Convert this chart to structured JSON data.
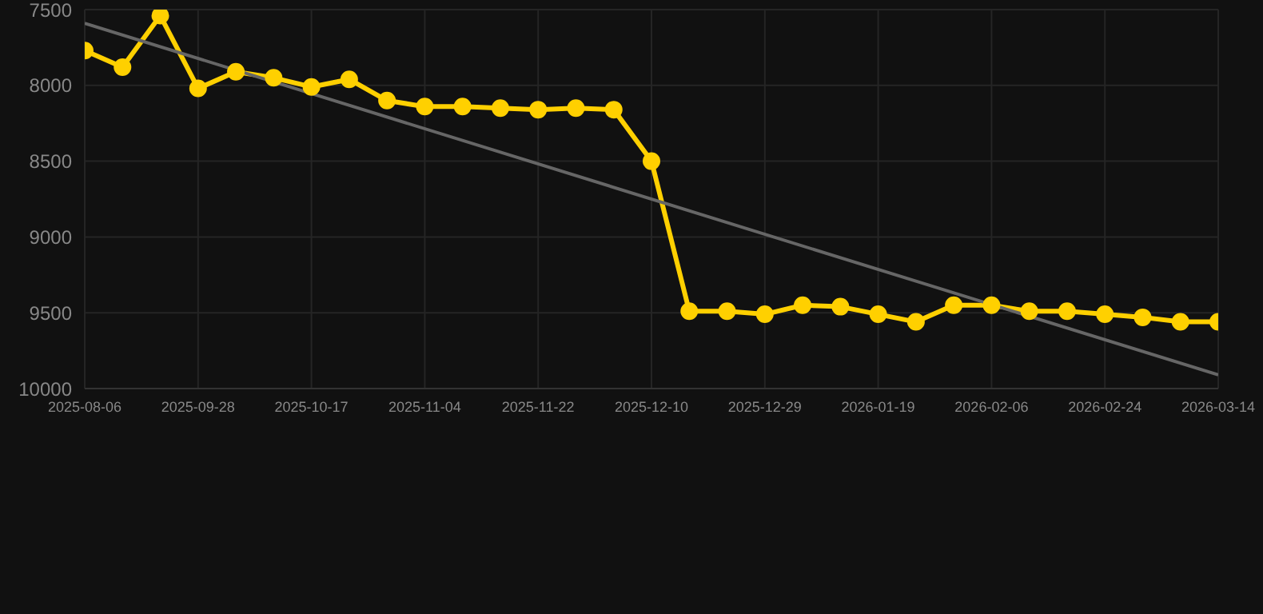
{
  "chart_data": {
    "type": "line",
    "categories": [
      "2025-08-06",
      null,
      null,
      "2025-09-28",
      null,
      null,
      "2025-10-17",
      null,
      null,
      "2025-11-04",
      null,
      null,
      "2025-11-22",
      null,
      null,
      "2025-12-10",
      null,
      null,
      "2025-12-29",
      null,
      null,
      "2026-01-19",
      null,
      null,
      "2026-02-06",
      null,
      null,
      "2026-02-24",
      null,
      null,
      "2026-03-14"
    ],
    "series": [
      {
        "color": "#ffd000",
        "marker": "circle",
        "values": [
          7770,
          7880,
          7540,
          8020,
          7910,
          7950,
          8010,
          7960,
          8100,
          8140,
          8140,
          8150,
          8160,
          8150,
          8160,
          8500,
          9490,
          9490,
          9510,
          9450,
          9460,
          9510,
          9560,
          9450,
          9450,
          9490,
          9490,
          9510,
          9530,
          9560,
          9560
        ]
      },
      {
        "type": "line",
        "color": "#666666",
        "marker": "none",
        "values": [
          7590,
          null,
          null,
          null,
          null,
          null,
          null,
          null,
          null,
          null,
          null,
          null,
          null,
          null,
          null,
          null,
          null,
          null,
          null,
          null,
          null,
          null,
          null,
          null,
          null,
          null,
          null,
          null,
          null,
          null,
          9910
        ]
      }
    ],
    "ylim": [
      10000,
      7500
    ],
    "yticks": [
      7500,
      8000,
      8500,
      9000,
      9500,
      10000
    ],
    "grid": true,
    "line_style": "solid"
  }
}
